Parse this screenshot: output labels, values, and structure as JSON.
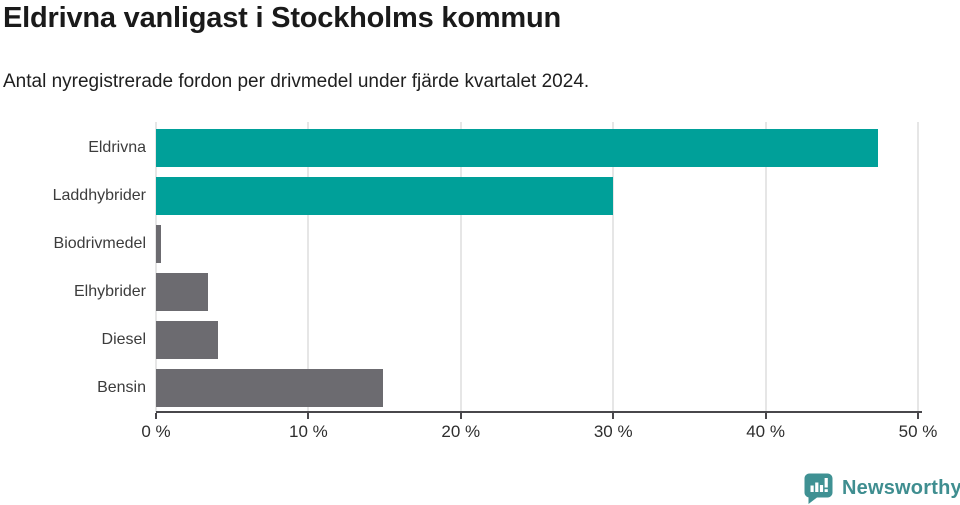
{
  "chart_data": {
    "type": "bar",
    "orientation": "horizontal",
    "title": "Eldrivna vanligast i Stockholms kommun",
    "subtitle": "Antal nyregistrerade fordon per drivmedel under fjärde kvartalet 2024.",
    "categories": [
      "Eldrivna",
      "Laddhybrider",
      "Biodrivmedel",
      "Elhybrider",
      "Diesel",
      "Bensin"
    ],
    "values": [
      47.4,
      30.0,
      0.3,
      3.4,
      4.1,
      14.9
    ],
    "unit": "%",
    "xlabel": "",
    "ylabel": "",
    "xlim": [
      0,
      50
    ],
    "x_tick_values": [
      0,
      10,
      20,
      30,
      40,
      50
    ],
    "x_tick_labels": [
      "0 %",
      "10 %",
      "20 %",
      "30 %",
      "40 %",
      "50 %"
    ],
    "grid": "vertical-gridlines-on",
    "legend": "none",
    "bar_colors": [
      "#00a099",
      "#00a099",
      "#6c6b70",
      "#6c6b70",
      "#6c6b70",
      "#6c6b70"
    ],
    "highlight_color": "#00a099",
    "base_color": "#6c6b70"
  },
  "footer": {
    "brand": "Newsworthy",
    "brand_color": "#3f8e90",
    "logo_icon": "bar-chart-speech-bubble"
  }
}
